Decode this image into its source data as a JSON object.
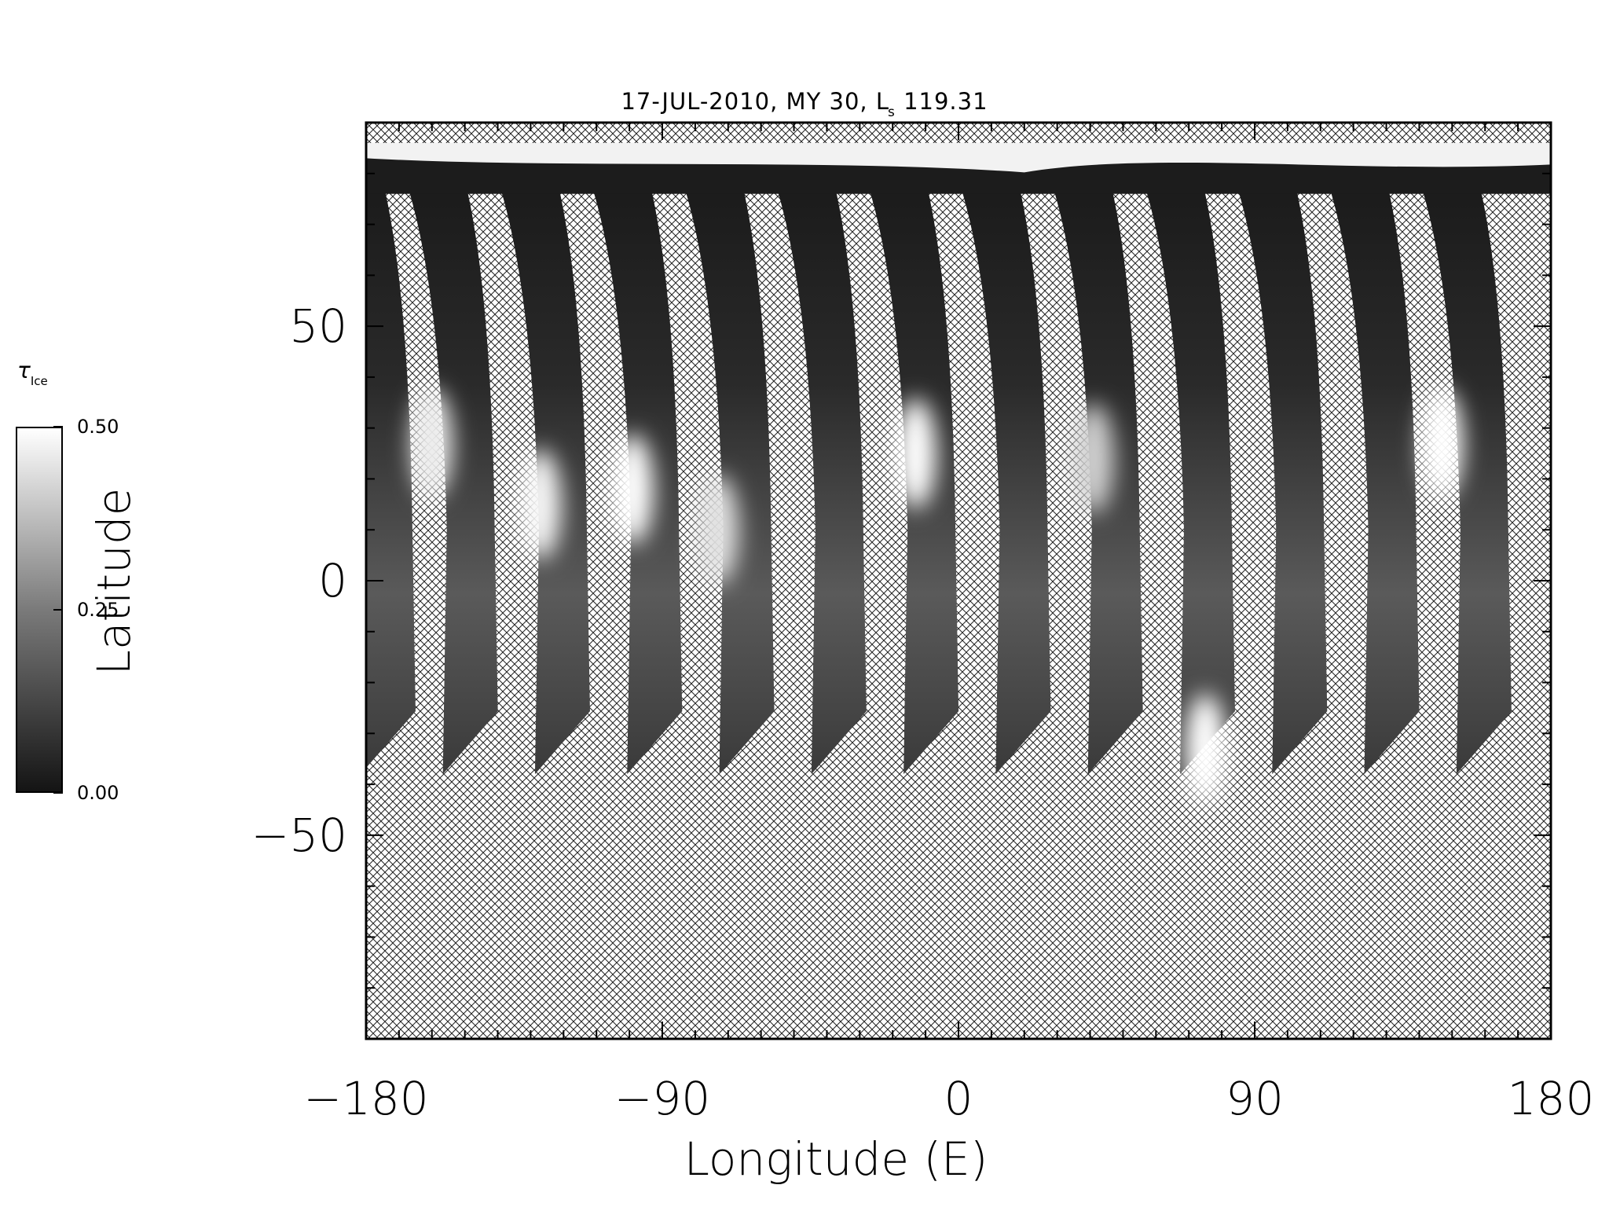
{
  "chart_data": {
    "type": "heatmap",
    "title": "17-JUL-2010, MY 30,  L",
    "title_subscript": "s",
    "title_suffix": " 119.31",
    "xlabel": "Longitude (E)",
    "ylabel": "Latitude",
    "xlim": [
      -180,
      180
    ],
    "ylim": [
      -90,
      90
    ],
    "xticks": [
      -180,
      -90,
      0,
      90,
      180
    ],
    "xtick_labels": [
      "−180",
      "−90",
      "0",
      "90",
      "180"
    ],
    "yticks": [
      -50,
      0,
      50
    ],
    "ytick_labels": [
      "−50",
      "0",
      "50"
    ],
    "colorbar": {
      "label": "τ",
      "label_subscript": "Ice",
      "min": 0.0,
      "max": 0.5,
      "ticks": [
        0.0,
        0.25,
        0.5
      ],
      "tick_labels": [
        "0.00",
        "0.25",
        "0.50"
      ],
      "colormap": "grayscale"
    },
    "missing_data": "cross-hatched",
    "swaths": [
      {
        "lon_center": -175,
        "lat_min": -38,
        "lat_max": 80
      },
      {
        "lon_center": -150,
        "lat_min": -38,
        "lat_max": 80
      },
      {
        "lon_center": -122,
        "lat_min": -38,
        "lat_max": 80
      },
      {
        "lon_center": -94,
        "lat_min": -38,
        "lat_max": 80
      },
      {
        "lon_center": -66,
        "lat_min": -38,
        "lat_max": 80
      },
      {
        "lon_center": -38,
        "lat_min": -38,
        "lat_max": 80
      },
      {
        "lon_center": -10,
        "lat_min": -38,
        "lat_max": 80
      },
      {
        "lon_center": 18,
        "lat_min": -38,
        "lat_max": 80
      },
      {
        "lon_center": 46,
        "lat_min": -38,
        "lat_max": 80
      },
      {
        "lon_center": 74,
        "lat_min": -38,
        "lat_max": 80
      },
      {
        "lon_center": 102,
        "lat_min": -38,
        "lat_max": 80
      },
      {
        "lon_center": 130,
        "lat_min": -38,
        "lat_max": 80
      },
      {
        "lon_center": 158,
        "lat_min": -38,
        "lat_max": 80
      }
    ],
    "bright_ice_patches": [
      {
        "lon": -160,
        "lat": 27,
        "tau": 0.45
      },
      {
        "lon": -127,
        "lat": 15,
        "tau": 0.48
      },
      {
        "lon": -99,
        "lat": 18,
        "tau": 0.5
      },
      {
        "lon": -73,
        "lat": 10,
        "tau": 0.42
      },
      {
        "lon": -13,
        "lat": 25,
        "tau": 0.5
      },
      {
        "lon": 41,
        "lat": 24,
        "tau": 0.38
      },
      {
        "lon": 75,
        "lat": -33,
        "tau": 0.5
      },
      {
        "lon": 147,
        "lat": 27,
        "tau": 0.5
      }
    ],
    "polar_cap_lat": 83
  }
}
